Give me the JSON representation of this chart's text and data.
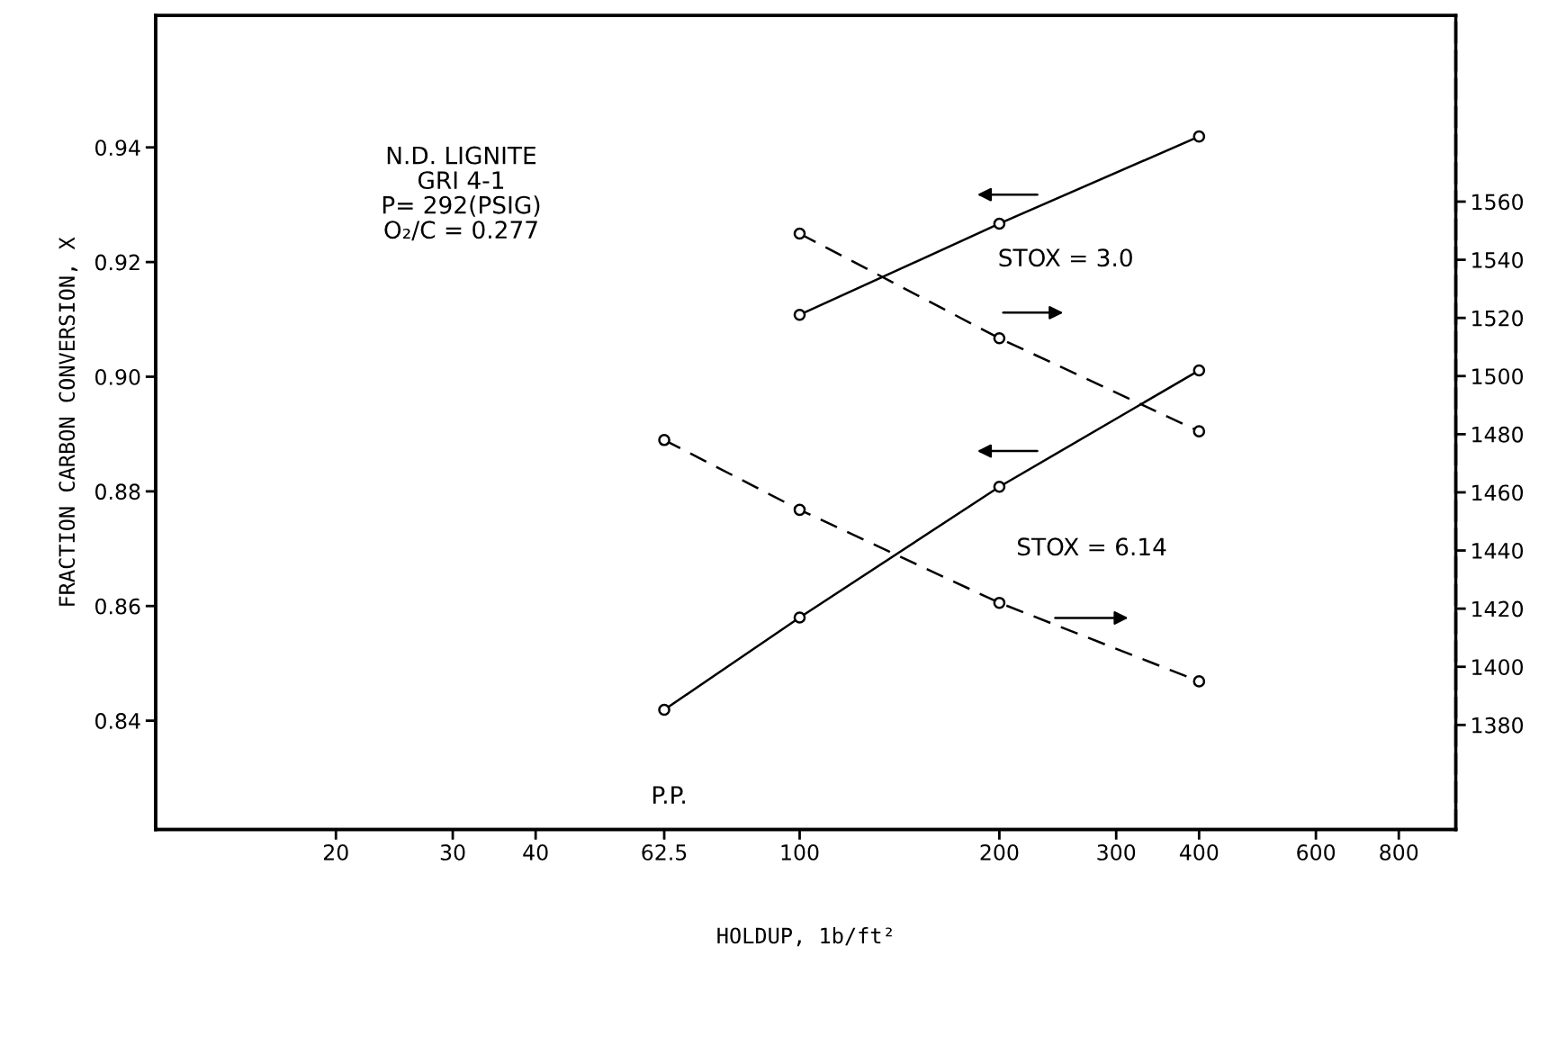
{
  "chart_data": {
    "type": "line",
    "xlabel": "HOLDUP, 1b/ft²",
    "ylabel": "FRACTION CARBON CONVERSION, X",
    "log": "x",
    "xlim": [
      10.7,
      975
    ],
    "xticks": [
      20,
      30,
      40,
      62.5,
      100,
      200,
      300,
      400,
      600,
      800
    ],
    "ylim": [
      0.821,
      0.963
    ],
    "yticks": [
      {
        "value": 0.84,
        "label": "0.84"
      },
      {
        "value": 0.86,
        "label": "0.86"
      },
      {
        "value": 0.88,
        "label": "0.88"
      },
      {
        "value": 0.9,
        "label": "0.90"
      },
      {
        "value": 0.92,
        "label": "0.92"
      },
      {
        "value": 0.94,
        "label": "0.94"
      }
    ],
    "y2lim": [
      1344,
      1624
    ],
    "y2ticks": [
      1380,
      1400,
      1420,
      1440,
      1460,
      1480,
      1500,
      1520,
      1540,
      1560
    ],
    "grid": false,
    "legend": false,
    "marker": "circle",
    "series": [
      {
        "color": "#000000",
        "line_style": "solid",
        "x": [
          100,
          200,
          400
        ],
        "values": [
          0.9108,
          0.9267,
          0.9419
        ]
      },
      {
        "color": "#000000",
        "line_style": "dashed",
        "axis": "y2",
        "x": [
          100,
          200,
          400
        ],
        "values": [
          1549,
          1513,
          1481
        ]
      },
      {
        "color": "#000000",
        "line_style": "solid",
        "x": [
          62.5,
          100,
          200,
          400
        ],
        "values": [
          0.8419,
          0.858,
          0.8808,
          0.9011
        ]
      },
      {
        "color": "#000000",
        "line_style": "dashed",
        "axis": "y2",
        "x": [
          62.5,
          100,
          200,
          400
        ],
        "values": [
          1478,
          1454,
          1422,
          1395
        ]
      }
    ],
    "annotations": [
      "N.D. LIGNITE\nGRI 4-1\nP= 292(PSIG)\nO₂/C = 0.277",
      "STOX = 3.0",
      "STOX = 6.14",
      "P.P."
    ]
  }
}
